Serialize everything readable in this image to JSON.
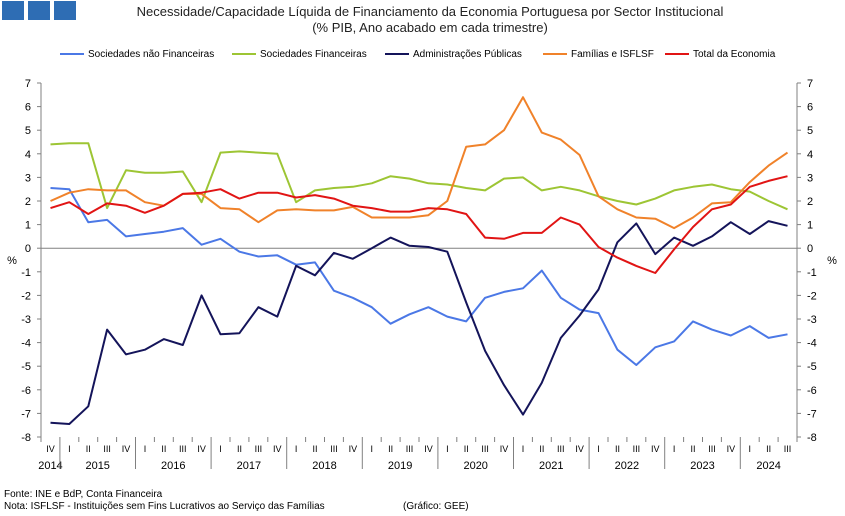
{
  "logo_label": "GEE logo",
  "colors": {
    "logo": "#2e6db4",
    "sociedades_nao_financeiras": "#4b78e6",
    "sociedades_financeiras": "#9dc534",
    "administracoes_publicas": "#14145a",
    "familias": "#f0822a",
    "total": "#e11414",
    "axis": "#808080"
  },
  "chart_data": {
    "type": "line",
    "title": "Necessidade/Capacidade Líquida de Financiamento da Economia Portuguesa por Sector Institucional",
    "subtitle": "(% PIB, Ano acabado em cada trimestre)",
    "ylabel": "%",
    "ylim": [
      -8,
      7
    ],
    "yticks": [
      7,
      6,
      5,
      4,
      3,
      2,
      1,
      0,
      -1,
      -2,
      -3,
      -4,
      -5,
      -6,
      -7,
      -8
    ],
    "grid": false,
    "legend": "top",
    "quarters": [
      "IV",
      "I",
      "II",
      "III",
      "IV",
      "I",
      "II",
      "III",
      "IV",
      "I",
      "II",
      "III",
      "IV",
      "I",
      "II",
      "III",
      "IV",
      "I",
      "II",
      "III",
      "IV",
      "I",
      "II",
      "III",
      "IV",
      "I",
      "II",
      "III",
      "IV",
      "I",
      "II",
      "III",
      "IV",
      "I",
      "II",
      "III",
      "IV",
      "I",
      "II",
      "III"
    ],
    "years": [
      {
        "label": "2014",
        "start": 0,
        "end": 0
      },
      {
        "label": "2015",
        "start": 1,
        "end": 4
      },
      {
        "label": "2016",
        "start": 5,
        "end": 8
      },
      {
        "label": "2017",
        "start": 9,
        "end": 12
      },
      {
        "label": "2018",
        "start": 13,
        "end": 16
      },
      {
        "label": "2019",
        "start": 17,
        "end": 20
      },
      {
        "label": "2020",
        "start": 21,
        "end": 24
      },
      {
        "label": "2021",
        "start": 25,
        "end": 28
      },
      {
        "label": "2022",
        "start": 29,
        "end": 32
      },
      {
        "label": "2023",
        "start": 33,
        "end": 36
      },
      {
        "label": "2024",
        "start": 37,
        "end": 39
      }
    ],
    "series": [
      {
        "name": "Sociedades não Financeiras",
        "key": "sociedades_nao_financeiras",
        "values": [
          2.55,
          2.5,
          1.1,
          1.2,
          0.5,
          0.6,
          0.7,
          0.85,
          0.15,
          0.4,
          -0.15,
          -0.35,
          -0.3,
          -0.7,
          -0.6,
          -1.8,
          -2.1,
          -2.5,
          -3.2,
          -2.8,
          -2.5,
          -2.9,
          -3.1,
          -2.1,
          -1.85,
          -1.7,
          -0.95,
          -2.1,
          -2.6,
          -2.75,
          -4.3,
          -4.95,
          -4.2,
          -3.95,
          -3.1,
          -3.45,
          -3.7,
          -3.3,
          -3.8,
          -3.65
        ]
      },
      {
        "name": "Sociedades Financeiras",
        "key": "sociedades_financeiras",
        "values": [
          4.4,
          4.45,
          4.45,
          1.7,
          3.3,
          3.2,
          3.2,
          3.25,
          1.95,
          4.05,
          4.1,
          4.05,
          4.0,
          1.95,
          2.45,
          2.55,
          2.6,
          2.75,
          3.05,
          2.95,
          2.75,
          2.7,
          2.55,
          2.45,
          2.95,
          3.0,
          2.45,
          2.6,
          2.45,
          2.2,
          2.0,
          1.85,
          2.1,
          2.45,
          2.6,
          2.7,
          2.5,
          2.4,
          2.0,
          1.65
        ]
      },
      {
        "name": "Administrações Públicas",
        "key": "administracoes_publicas",
        "values": [
          -7.4,
          -7.45,
          -6.7,
          -3.45,
          -4.5,
          -4.3,
          -3.85,
          -4.1,
          -2.0,
          -3.65,
          -3.6,
          -2.5,
          -2.9,
          -0.75,
          -1.15,
          -0.2,
          -0.45,
          0.0,
          0.45,
          0.1,
          0.05,
          -0.15,
          -2.3,
          -4.35,
          -5.8,
          -7.05,
          -5.7,
          -3.8,
          -2.85,
          -1.75,
          0.25,
          1.05,
          -0.25,
          0.45,
          0.1,
          0.5,
          1.1,
          0.6,
          1.15,
          0.95
        ]
      },
      {
        "name": "Famílias e ISFLSF",
        "key": "familias",
        "values": [
          2.0,
          2.35,
          2.5,
          2.45,
          2.45,
          1.95,
          1.8,
          2.3,
          2.3,
          1.7,
          1.65,
          1.1,
          1.6,
          1.65,
          1.6,
          1.6,
          1.75,
          1.3,
          1.3,
          1.3,
          1.4,
          2.0,
          4.3,
          4.4,
          5.0,
          6.4,
          4.9,
          4.6,
          3.95,
          2.2,
          1.65,
          1.3,
          1.25,
          0.85,
          1.3,
          1.9,
          1.95,
          2.8,
          3.5,
          4.05
        ]
      },
      {
        "name": "Total da Economia",
        "key": "total",
        "values": [
          1.7,
          1.95,
          1.45,
          1.9,
          1.8,
          1.5,
          1.8,
          2.3,
          2.35,
          2.5,
          2.1,
          2.35,
          2.35,
          2.15,
          2.25,
          2.1,
          1.8,
          1.7,
          1.55,
          1.55,
          1.7,
          1.65,
          1.45,
          0.45,
          0.4,
          0.65,
          0.65,
          1.3,
          1.0,
          0.05,
          -0.4,
          -0.75,
          -1.05,
          -0.05,
          0.9,
          1.65,
          1.85,
          2.6,
          2.85,
          3.05
        ]
      }
    ]
  },
  "footer": {
    "fonte": "Fonte: INE e BdP, Conta Financeira",
    "nota": "Nota: ISFLSF - Instituições sem Fins Lucrativos ao Serviço das Famílias",
    "grafico": "(Gráfico: GEE)"
  }
}
